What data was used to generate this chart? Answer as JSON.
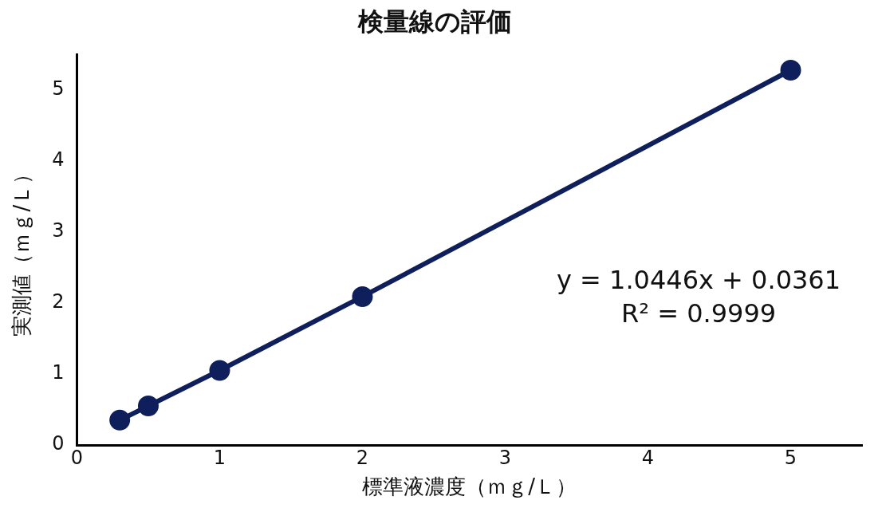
{
  "chart_data": {
    "type": "line",
    "title": "検量線の評価",
    "xlabel": "標準液濃度（ｍｇ/Ｌ）",
    "ylabel": "実測値（ｍｇ/Ｌ）",
    "x": [
      0.3,
      0.5,
      1,
      2,
      5
    ],
    "series": [
      {
        "color": "#0f1f5c",
        "values": [
          0.35,
          0.55,
          1.05,
          2.09,
          5.28
        ]
      }
    ],
    "xlim": [
      0,
      5.5
    ],
    "xticks": [
      0,
      1,
      2,
      3,
      4,
      5
    ],
    "ylim": [
      0,
      5.5
    ],
    "yticks": [
      0,
      1,
      2,
      3,
      4,
      5
    ],
    "marker": "circle",
    "line_style": "solid",
    "grid": false,
    "legend": false,
    "annotations": [
      "y = 1.0446x + 0.0361",
      "R² = 0.9999"
    ]
  }
}
